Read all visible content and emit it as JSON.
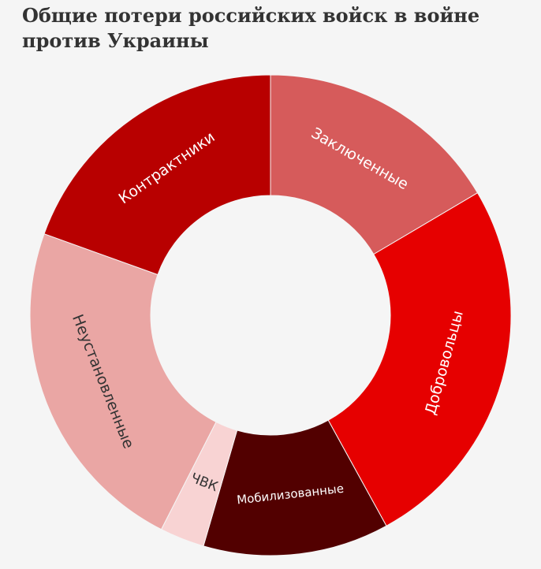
{
  "title": "Общие потери российских войск в войне против Украины",
  "chart_data": {
    "type": "pie",
    "title": "Общие потери российских войск в войне против Украины",
    "slices": [
      {
        "label": "Заключенные",
        "value": 16.5,
        "color": "#d65b5b",
        "text_color": "#ffffff"
      },
      {
        "label": "Добровольцы",
        "value": 25.5,
        "color": "#e60000",
        "text_color": "#ffffff"
      },
      {
        "label": "Мобилизованные",
        "value": 12.5,
        "color": "#520000",
        "text_color": "#ffffff"
      },
      {
        "label": "ЧВК",
        "value": 3.0,
        "color": "#f8d3d3",
        "text_color": "#333333"
      },
      {
        "label": "Неустановленные",
        "value": 23.0,
        "color": "#eaa6a4",
        "text_color": "#333333"
      },
      {
        "label": "Контрактники",
        "value": 19.5,
        "color": "#b80000",
        "text_color": "#ffffff"
      }
    ],
    "legend": "none"
  }
}
